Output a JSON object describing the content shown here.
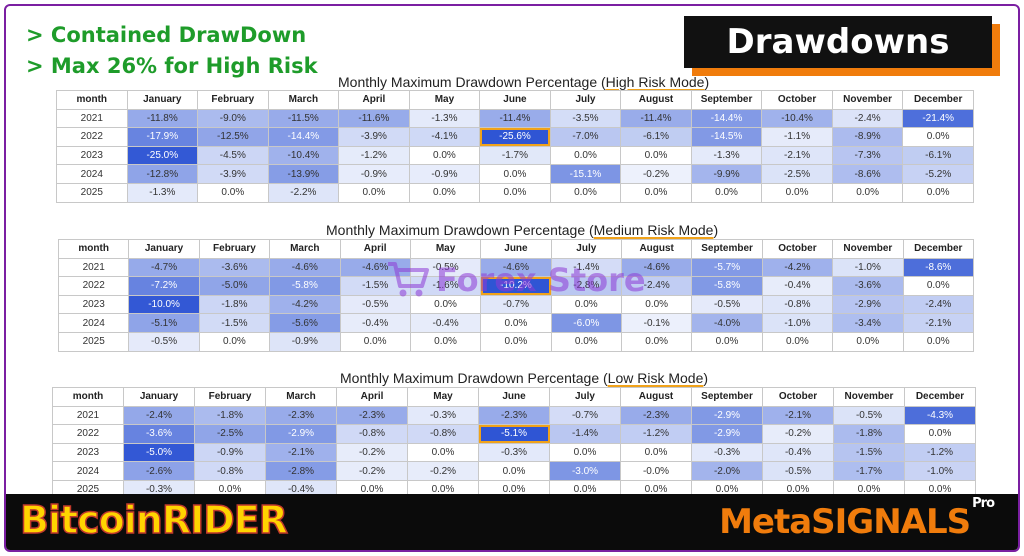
{
  "header": {
    "bullet_1": "> Contained DrawDown",
    "bullet_2": "> Max 26% for High Risk",
    "badge": "Drawdowns"
  },
  "colors": {
    "bullet_green": "#1e9c2a",
    "badge_bg": "#111111",
    "badge_shadow": "#f07c0c",
    "highlight_orange": "#f0a21a",
    "cell_blue_strong": "#2f55d4",
    "brand_yellow": "#ffd400",
    "brand_orange": "#f07c0c"
  },
  "columns": [
    "month",
    "January",
    "February",
    "March",
    "April",
    "May",
    "June",
    "July",
    "August",
    "September",
    "October",
    "November",
    "December"
  ],
  "tables": [
    {
      "title_prefix": "Monthly Maximum Drawdown Percentage (",
      "title_mode": "High Risk Mode",
      "title_suffix": ")",
      "highlight": {
        "row": 1,
        "col": 6
      },
      "rows": [
        {
          "year": "2021",
          "cells": [
            "-11.8%",
            "-9.0%",
            "-11.5%",
            "-11.6%",
            "-1.3%",
            "-11.4%",
            "-3.5%",
            "-11.4%",
            "-14.4%",
            "-10.4%",
            "-2.4%",
            "-21.4%"
          ]
        },
        {
          "year": "2022",
          "cells": [
            "-17.9%",
            "-12.5%",
            "-14.4%",
            "-3.9%",
            "-4.1%",
            "-25.6%",
            "-7.0%",
            "-6.1%",
            "-14.5%",
            "-1.1%",
            "-8.9%",
            "0.0%"
          ]
        },
        {
          "year": "2023",
          "cells": [
            "-25.0%",
            "-4.5%",
            "-10.4%",
            "-1.2%",
            "0.0%",
            "-1.7%",
            "0.0%",
            "0.0%",
            "-1.3%",
            "-2.1%",
            "-7.3%",
            "-6.1%"
          ]
        },
        {
          "year": "2024",
          "cells": [
            "-12.8%",
            "-3.9%",
            "-13.9%",
            "-0.9%",
            "-0.9%",
            "0.0%",
            "-15.1%",
            "-0.2%",
            "-9.9%",
            "-2.5%",
            "-8.6%",
            "-5.2%"
          ]
        },
        {
          "year": "2025",
          "cells": [
            "-1.3%",
            "0.0%",
            "-2.2%",
            "0.0%",
            "0.0%",
            "0.0%",
            "0.0%",
            "0.0%",
            "0.0%",
            "0.0%",
            "0.0%",
            "0.0%"
          ]
        }
      ]
    },
    {
      "title_prefix": "Monthly Maximum Drawdown Percentage (",
      "title_mode": "Medium Risk Mode",
      "title_suffix": ")",
      "highlight": {
        "row": 1,
        "col": 6
      },
      "rows": [
        {
          "year": "2021",
          "cells": [
            "-4.7%",
            "-3.6%",
            "-4.6%",
            "-4.6%",
            "-0.5%",
            "-4.6%",
            "-1.4%",
            "-4.6%",
            "-5.7%",
            "-4.2%",
            "-1.0%",
            "-8.6%"
          ]
        },
        {
          "year": "2022",
          "cells": [
            "-7.2%",
            "-5.0%",
            "-5.8%",
            "-1.5%",
            "-1.6%",
            "-10.2%",
            "-2.8%",
            "-2.4%",
            "-5.8%",
            "-0.4%",
            "-3.6%",
            "0.0%"
          ]
        },
        {
          "year": "2023",
          "cells": [
            "-10.0%",
            "-1.8%",
            "-4.2%",
            "-0.5%",
            "0.0%",
            "-0.7%",
            "0.0%",
            "0.0%",
            "-0.5%",
            "-0.8%",
            "-2.9%",
            "-2.4%"
          ]
        },
        {
          "year": "2024",
          "cells": [
            "-5.1%",
            "-1.5%",
            "-5.6%",
            "-0.4%",
            "-0.4%",
            "0.0%",
            "-6.0%",
            "-0.1%",
            "-4.0%",
            "-1.0%",
            "-3.4%",
            "-2.1%"
          ]
        },
        {
          "year": "2025",
          "cells": [
            "-0.5%",
            "0.0%",
            "-0.9%",
            "0.0%",
            "0.0%",
            "0.0%",
            "0.0%",
            "0.0%",
            "0.0%",
            "0.0%",
            "0.0%",
            "0.0%"
          ]
        }
      ]
    },
    {
      "title_prefix": "Monthly Maximum Drawdown Percentage (",
      "title_mode": "Low Risk Mode",
      "title_suffix": ")",
      "highlight": {
        "row": 1,
        "col": 6
      },
      "rows": [
        {
          "year": "2021",
          "cells": [
            "-2.4%",
            "-1.8%",
            "-2.3%",
            "-2.3%",
            "-0.3%",
            "-2.3%",
            "-0.7%",
            "-2.3%",
            "-2.9%",
            "-2.1%",
            "-0.5%",
            "-4.3%"
          ]
        },
        {
          "year": "2022",
          "cells": [
            "-3.6%",
            "-2.5%",
            "-2.9%",
            "-0.8%",
            "-0.8%",
            "-5.1%",
            "-1.4%",
            "-1.2%",
            "-2.9%",
            "-0.2%",
            "-1.8%",
            "0.0%"
          ]
        },
        {
          "year": "2023",
          "cells": [
            "-5.0%",
            "-0.9%",
            "-2.1%",
            "-0.2%",
            "0.0%",
            "-0.3%",
            "0.0%",
            "0.0%",
            "-0.3%",
            "-0.4%",
            "-1.5%",
            "-1.2%"
          ]
        },
        {
          "year": "2024",
          "cells": [
            "-2.6%",
            "-0.8%",
            "-2.8%",
            "-0.2%",
            "-0.2%",
            "0.0%",
            "-3.0%",
            "-0.0%",
            "-2.0%",
            "-0.5%",
            "-1.7%",
            "-1.0%"
          ]
        },
        {
          "year": "2025",
          "cells": [
            "-0.3%",
            "0.0%",
            "-0.4%",
            "0.0%",
            "0.0%",
            "0.0%",
            "0.0%",
            "0.0%",
            "0.0%",
            "0.0%",
            "0.0%",
            "0.0%"
          ]
        }
      ]
    }
  ],
  "footer": {
    "brand_left": "BitcoinRIDER",
    "brand_right_meta": "Meta",
    "brand_right_signals": "SIGNALS",
    "brand_right_sup": "Pro"
  },
  "watermark": {
    "icon": "shopping-cart-icon",
    "text": "Forex Store"
  }
}
